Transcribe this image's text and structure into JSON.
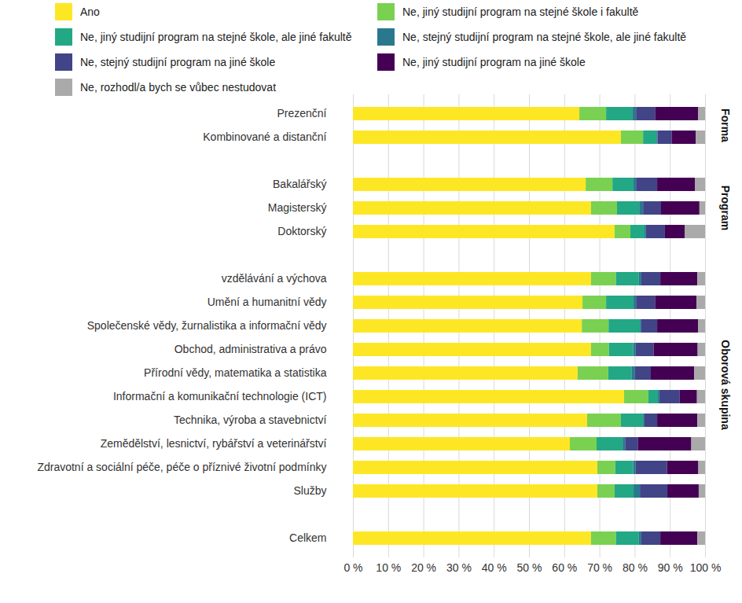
{
  "chart_data": {
    "type": "bar",
    "orientation": "horizontal",
    "stacked": true,
    "grid": true,
    "legend": "top",
    "categories": [
      "Prezenční",
      "Kombinované a distanční",
      null,
      "Bakalářský",
      "Magisterský",
      "Doktorský",
      null,
      "vzdělávání a výchova",
      "Umění a humanitní vědy",
      "Společenské vědy, žurnalistika a informační vědy",
      "Obchod, administrativa a právo",
      "Přírodní vědy, matematika a statistika",
      "Informační a komunikační technologie (ICT)",
      "Technika, výroba a stavebnictví",
      "Zemědělství, lesnictví, rybářství a veterinářství",
      "Zdravotní a sociální péče, péče o příznivé životní podmínky",
      "Služby",
      null,
      "Celkem"
    ],
    "groups": [
      {
        "name": "Forma",
        "categories": [
          "Prezenční",
          "Kombinované a distanční"
        ]
      },
      {
        "name": "Program",
        "categories": [
          "Bakalářský",
          "Magisterský",
          "Doktorský"
        ]
      },
      {
        "name": "Oborová skupina",
        "categories": [
          "vzdělávání a výchova",
          "Umění a humanitní vědy",
          "Společenské vědy, žurnalistika a informační vědy",
          "Obchod, administrativa a právo",
          "Přírodní vědy, matematika a statistika",
          "Informační a komunikační technologie (ICT)",
          "Technika, výroba a stavebnictví",
          "Zemědělství, lesnictví, rybářství a veterinářství",
          "Zdravotní a sociální péče, péče o příznivé životní podmínky",
          "Služby"
        ]
      }
    ],
    "series": [
      {
        "name": "Ano",
        "color": "#fde725",
        "values": [
          64.3,
          76.1,
          null,
          66.1,
          67.6,
          74.3,
          null,
          67.6,
          65.2,
          65.0,
          67.6,
          63.8,
          77.0,
          66.5,
          61.6,
          69.4,
          69.4,
          null,
          67.6
        ]
      },
      {
        "name": "Ne, jiný studijní program na stejné škole i fakultě",
        "color": "#7ad151",
        "values": [
          7.6,
          6.3,
          null,
          7.6,
          7.4,
          4.5,
          null,
          7.1,
          6.7,
          7.6,
          5.1,
          8.7,
          6.9,
          9.6,
          7.6,
          5.1,
          4.9,
          null,
          7.1
        ]
      },
      {
        "name": "Ne, jiný studijní program na stejné škole, ale jiné fakultě",
        "color": "#22a884",
        "values": [
          7.4,
          3.8,
          null,
          6.0,
          6.3,
          4.0,
          null,
          6.5,
          7.8,
          8.9,
          6.9,
          6.7,
          2.7,
          6.3,
          7.4,
          5.1,
          5.4,
          null,
          6.5
        ]
      },
      {
        "name": "Ne, stejný studijní program na stejné škole, ale jiné fakultě",
        "color": "#2a788e",
        "values": [
          1.1,
          0.3,
          null,
          0.7,
          1.1,
          0.4,
          null,
          0.7,
          0.7,
          0.4,
          0.7,
          0.9,
          0.4,
          0.4,
          0.7,
          0.7,
          1.8,
          null,
          0.7
        ]
      },
      {
        "name": "Ne, stejný studijní program na jiné škole",
        "color": "#414487",
        "values": [
          5.4,
          4.0,
          null,
          6.0,
          5.1,
          5.4,
          null,
          5.4,
          5.4,
          4.5,
          5.1,
          4.5,
          5.8,
          3.6,
          3.6,
          8.9,
          7.8,
          null,
          5.4
        ]
      },
      {
        "name": "Ne, jiný studijní program na jiné škole",
        "color": "#440154",
        "values": [
          12.2,
          6.9,
          null,
          10.7,
          10.9,
          5.6,
          null,
          10.5,
          11.8,
          11.6,
          12.5,
          12.3,
          4.9,
          11.4,
          15.2,
          8.9,
          8.9,
          null,
          10.5
        ]
      },
      {
        "name": "Ne, rozhodl/a bych se vůbec nestudovat",
        "color": "#aaaaaa",
        "values": [
          2.0,
          2.6,
          null,
          2.9,
          1.6,
          5.8,
          null,
          2.2,
          2.4,
          2.0,
          2.1,
          3.1,
          2.3,
          2.2,
          3.9,
          1.9,
          1.8,
          null,
          2.2
        ]
      }
    ],
    "xlim": [
      0,
      100
    ],
    "xticks": [
      {
        "value": 0,
        "label": "0 %"
      },
      {
        "value": 10,
        "label": "10 %"
      },
      {
        "value": 20,
        "label": "20 %"
      },
      {
        "value": 30,
        "label": "30 %"
      },
      {
        "value": 40,
        "label": "40 %"
      },
      {
        "value": 50,
        "label": "50 %"
      },
      {
        "value": 60,
        "label": "60 %"
      },
      {
        "value": 70,
        "label": "70 %"
      },
      {
        "value": 80,
        "label": "80 %"
      },
      {
        "value": 90,
        "label": "90 %"
      },
      {
        "value": 100,
        "label": "100 %"
      }
    ]
  }
}
